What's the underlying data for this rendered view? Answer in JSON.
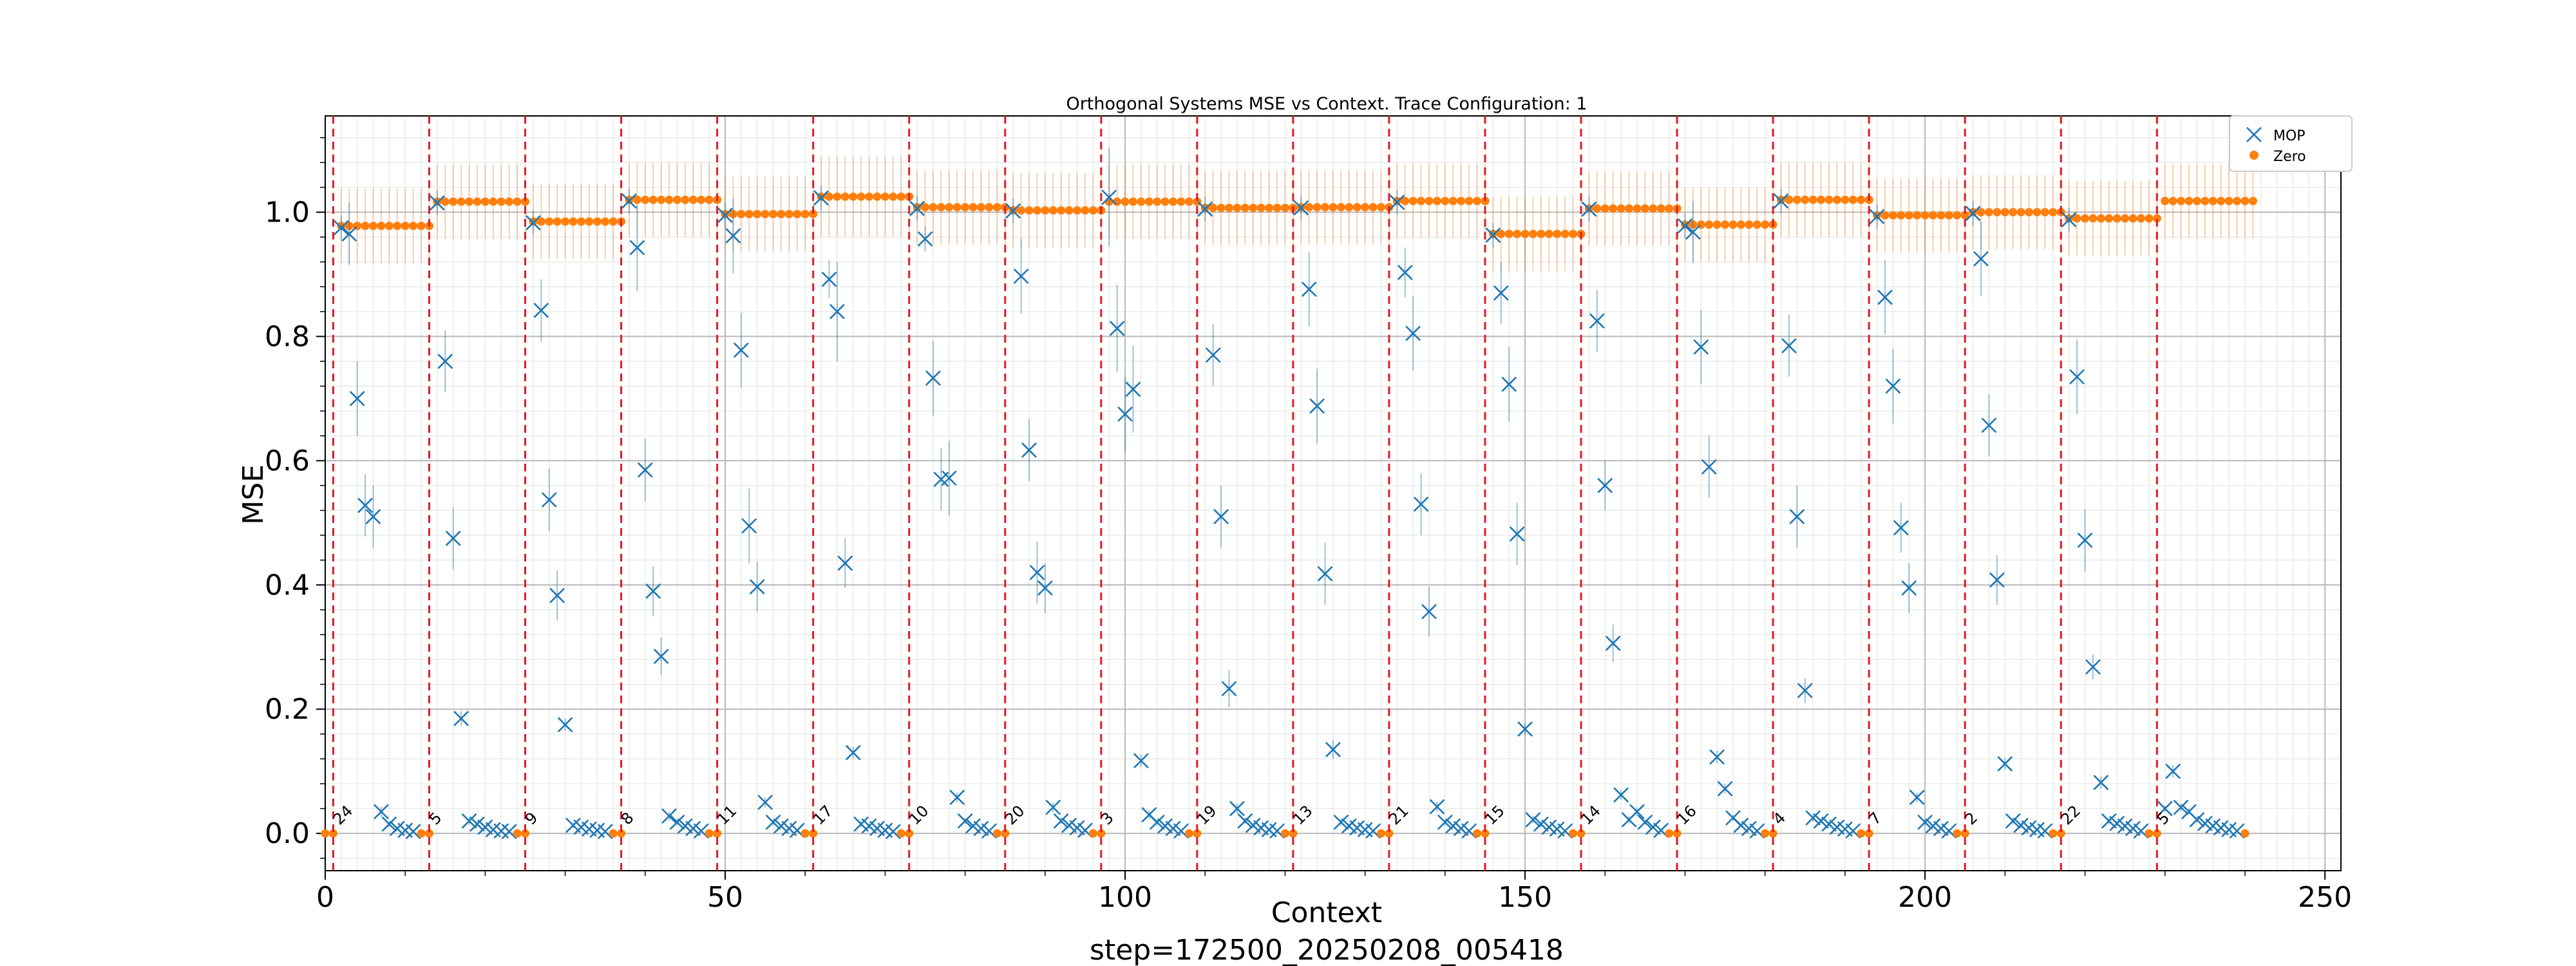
{
  "chart_data": {
    "type": "scatter",
    "title": "Orthogonal Systems MSE vs Context. Trace Configuration: 1",
    "xlabel": "Context",
    "ylabel": "MSE",
    "caption": "step=172500_20250208_005418",
    "xlim": [
      0,
      252
    ],
    "ylim": [
      -0.06,
      1.155
    ],
    "x_ticks": [
      0,
      50,
      100,
      150,
      200,
      250
    ],
    "y_ticks": [
      0.0,
      0.2,
      0.4,
      0.6,
      0.8,
      1.0
    ],
    "grid": true,
    "legend_position": "top-right",
    "colors": {
      "mop": "#1f77b4",
      "zero": "#ff7f0e",
      "separator": "#e41a1c"
    },
    "series": [
      {
        "name": "MOP",
        "marker": "x",
        "color": "#1f77b4"
      },
      {
        "name": "Zero",
        "marker": "o",
        "color": "#ff7f0e"
      }
    ],
    "block_span": 12,
    "boundaries": [
      1,
      13,
      25,
      37,
      49,
      61,
      73,
      85,
      97,
      109,
      121,
      133,
      145,
      157,
      169,
      181,
      193,
      205,
      217,
      229
    ],
    "blocks": [
      {
        "label": "24",
        "zero_mean": 0.978,
        "zero_err": 0.06,
        "mop": [
          0.975,
          0.965,
          0.7,
          0.528,
          0.51,
          0.035,
          0.015,
          0.008,
          0.005,
          0.003
        ],
        "mop_err": [
          0.02,
          0.05,
          0.06,
          0.05,
          0.05,
          0.008,
          0.005,
          0.003,
          0.002,
          0.002
        ]
      },
      {
        "label": "5",
        "zero_mean": 1.017,
        "zero_err": 0.06,
        "mop": [
          1.015,
          0.76,
          0.475,
          0.185,
          0.02,
          0.015,
          0.01,
          0.006,
          0.004,
          0.003
        ],
        "mop_err": [
          0.02,
          0.05,
          0.05,
          0.012,
          0.006,
          0.005,
          0.003,
          0.002,
          0.002,
          0.002
        ]
      },
      {
        "label": "9",
        "zero_mean": 0.985,
        "zero_err": 0.06,
        "mop": [
          0.983,
          0.842,
          0.537,
          0.383,
          0.175,
          0.013,
          0.01,
          0.007,
          0.005,
          0.003
        ],
        "mop_err": [
          0.02,
          0.05,
          0.05,
          0.04,
          0.01,
          0.005,
          0.003,
          0.002,
          0.002,
          0.002
        ]
      },
      {
        "label": "8",
        "zero_mean": 1.02,
        "zero_err": 0.06,
        "mop": [
          1.018,
          0.943,
          0.585,
          0.39,
          0.285,
          0.028,
          0.018,
          0.012,
          0.008,
          0.004
        ],
        "mop_err": [
          0.02,
          0.07,
          0.05,
          0.04,
          0.03,
          0.007,
          0.005,
          0.003,
          0.002,
          0.002
        ]
      },
      {
        "label": "11",
        "zero_mean": 0.997,
        "zero_err": 0.06,
        "mop": [
          0.995,
          0.962,
          0.778,
          0.495,
          0.397,
          0.05,
          0.018,
          0.012,
          0.008,
          0.005
        ],
        "mop_err": [
          0.02,
          0.06,
          0.06,
          0.06,
          0.04,
          0.008,
          0.005,
          0.003,
          0.002,
          0.002
        ]
      },
      {
        "label": "17",
        "zero_mean": 1.025,
        "zero_err": 0.065,
        "mop": [
          1.023,
          0.892,
          0.84,
          0.435,
          0.13,
          0.015,
          0.012,
          0.008,
          0.005,
          0.003
        ],
        "mop_err": [
          0.02,
          0.03,
          0.08,
          0.04,
          0.01,
          0.005,
          0.004,
          0.003,
          0.002,
          0.002
        ]
      },
      {
        "label": "10",
        "zero_mean": 1.008,
        "zero_err": 0.06,
        "mop": [
          1.006,
          0.957,
          0.733,
          0.57,
          0.572,
          0.058,
          0.02,
          0.012,
          0.008,
          0.004
        ],
        "mop_err": [
          0.02,
          0.02,
          0.06,
          0.05,
          0.06,
          0.008,
          0.005,
          0.003,
          0.002,
          0.002
        ]
      },
      {
        "label": "20",
        "zero_mean": 1.003,
        "zero_err": 0.06,
        "mop": [
          1.002,
          0.897,
          0.617,
          0.42,
          0.395,
          0.042,
          0.02,
          0.013,
          0.009,
          0.005
        ],
        "mop_err": [
          0.02,
          0.06,
          0.05,
          0.05,
          0.04,
          0.008,
          0.005,
          0.003,
          0.002,
          0.002
        ]
      },
      {
        "label": "3",
        "zero_mean": 1.017,
        "zero_err": 0.06,
        "mop": [
          1.024,
          0.813,
          0.675,
          0.715,
          0.117,
          0.03,
          0.018,
          0.012,
          0.008,
          0.004
        ],
        "mop_err": [
          0.08,
          0.07,
          0.06,
          0.07,
          0.01,
          0.007,
          0.005,
          0.003,
          0.002,
          0.002
        ]
      },
      {
        "label": "19",
        "zero_mean": 1.007,
        "zero_err": 0.06,
        "mop": [
          1.005,
          0.77,
          0.51,
          0.233,
          0.04,
          0.02,
          0.013,
          0.009,
          0.006,
          0.004
        ],
        "mop_err": [
          0.02,
          0.05,
          0.05,
          0.03,
          0.008,
          0.005,
          0.004,
          0.003,
          0.002,
          0.002
        ]
      },
      {
        "label": "13",
        "zero_mean": 1.008,
        "zero_err": 0.06,
        "mop": [
          1.007,
          0.876,
          0.688,
          0.418,
          0.135,
          0.018,
          0.012,
          0.009,
          0.006,
          0.004
        ],
        "mop_err": [
          0.02,
          0.06,
          0.06,
          0.05,
          0.015,
          0.006,
          0.004,
          0.003,
          0.002,
          0.002
        ]
      },
      {
        "label": "21",
        "zero_mean": 1.018,
        "zero_err": 0.06,
        "mop": [
          1.016,
          0.903,
          0.805,
          0.53,
          0.357,
          0.043,
          0.018,
          0.012,
          0.008,
          0.004
        ],
        "mop_err": [
          0.02,
          0.04,
          0.06,
          0.05,
          0.04,
          0.008,
          0.005,
          0.003,
          0.002,
          0.002
        ]
      },
      {
        "label": "15",
        "zero_mean": 0.965,
        "zero_err": 0.06,
        "mop": [
          0.963,
          0.87,
          0.723,
          0.482,
          0.168,
          0.022,
          0.015,
          0.01,
          0.007,
          0.004
        ],
        "mop_err": [
          0.02,
          0.05,
          0.06,
          0.05,
          0.01,
          0.006,
          0.004,
          0.003,
          0.002,
          0.002
        ]
      },
      {
        "label": "14",
        "zero_mean": 1.006,
        "zero_err": 0.06,
        "mop": [
          1.005,
          0.825,
          0.56,
          0.306,
          0.062,
          0.022,
          0.035,
          0.018,
          0.01,
          0.005
        ],
        "mop_err": [
          0.02,
          0.05,
          0.04,
          0.03,
          0.008,
          0.006,
          0.007,
          0.004,
          0.002,
          0.002
        ]
      },
      {
        "label": "16",
        "zero_mean": 0.98,
        "zero_err": 0.06,
        "mop": [
          0.978,
          0.968,
          0.783,
          0.59,
          0.123,
          0.072,
          0.025,
          0.013,
          0.008,
          0.004
        ],
        "mop_err": [
          0.02,
          0.05,
          0.06,
          0.05,
          0.01,
          0.008,
          0.005,
          0.003,
          0.002,
          0.002
        ]
      },
      {
        "label": "4",
        "zero_mean": 1.02,
        "zero_err": 0.06,
        "mop": [
          1.018,
          0.785,
          0.51,
          0.23,
          0.025,
          0.02,
          0.015,
          0.01,
          0.007,
          0.004
        ],
        "mop_err": [
          0.02,
          0.05,
          0.05,
          0.02,
          0.006,
          0.005,
          0.004,
          0.003,
          0.002,
          0.002
        ]
      },
      {
        "label": "7",
        "zero_mean": 0.995,
        "zero_err": 0.06,
        "mop": [
          0.993,
          0.863,
          0.72,
          0.492,
          0.395,
          0.058,
          0.018,
          0.012,
          0.008,
          0.004
        ],
        "mop_err": [
          0.02,
          0.06,
          0.06,
          0.04,
          0.04,
          0.008,
          0.005,
          0.003,
          0.002,
          0.002
        ]
      },
      {
        "label": "2",
        "zero_mean": 1.0,
        "zero_err": 0.06,
        "mop": [
          0.998,
          0.925,
          0.657,
          0.408,
          0.112,
          0.02,
          0.013,
          0.009,
          0.006,
          0.004
        ],
        "mop_err": [
          0.02,
          0.06,
          0.05,
          0.04,
          0.01,
          0.006,
          0.004,
          0.003,
          0.002,
          0.002
        ]
      },
      {
        "label": "22",
        "zero_mean": 0.99,
        "zero_err": 0.06,
        "mop": [
          0.988,
          0.735,
          0.472,
          0.268,
          0.082,
          0.02,
          0.016,
          0.012,
          0.008,
          0.004
        ],
        "mop_err": [
          0.02,
          0.06,
          0.05,
          0.02,
          0.01,
          0.006,
          0.004,
          0.003,
          0.002,
          0.002
        ]
      },
      {
        "label": "5",
        "zero_mean": 1.018,
        "zero_err": 0.06,
        "mop": [
          0.04,
          0.1,
          0.042,
          0.035,
          0.022,
          0.016,
          0.012,
          0.009,
          0.006,
          0.004
        ],
        "mop_err": [
          0.005,
          0.01,
          0.006,
          0.005,
          0.004,
          0.003,
          0.003,
          0.002,
          0.002,
          0.002
        ]
      }
    ]
  }
}
